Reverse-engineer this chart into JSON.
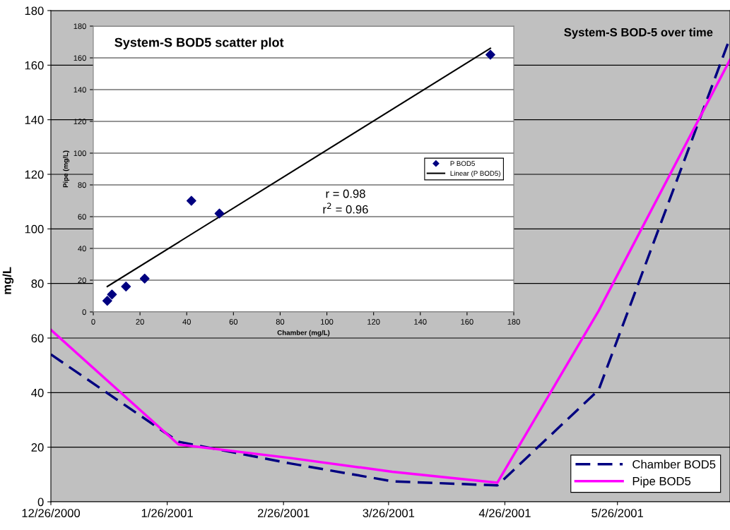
{
  "chart_data": [
    {
      "type": "line",
      "title": "System-S BOD-5 over time",
      "ylabel": "mg/L",
      "x": [
        "2000-12-26",
        "2001-01-29",
        "2001-02-28",
        "2001-03-27",
        "2001-04-24",
        "2001-05-21",
        "2001-06-25"
      ],
      "series": [
        {
          "name": "Chamber BOD5",
          "color": "#000080",
          "line_style": "dashed",
          "values": [
            54,
            22,
            14,
            7.5,
            6,
            41,
            170
          ]
        },
        {
          "name": "Pipe BOD5",
          "color": "#ff00ff",
          "line_style": "solid",
          "values": [
            63,
            21,
            16,
            11,
            7,
            70,
            162
          ]
        }
      ],
      "xlim": [
        "2000-12-26",
        "2001-06-25"
      ],
      "xticks": [
        {
          "value": "2000-12-26",
          "label": "12/26/2000"
        },
        {
          "value": "2001-01-26",
          "label": "1/26/2001"
        },
        {
          "value": "2001-02-26",
          "label": "2/26/2001"
        },
        {
          "value": "2001-03-26",
          "label": "3/26/2001"
        },
        {
          "value": "2001-04-26",
          "label": "4/26/2001"
        },
        {
          "value": "2001-05-26",
          "label": "5/26/2001"
        }
      ],
      "ylim": [
        0,
        180
      ],
      "yticks": [
        0,
        20,
        40,
        60,
        80,
        100,
        120,
        140,
        160,
        180
      ],
      "grid": "y",
      "legend": "bottom right",
      "marker": "none"
    },
    {
      "type": "scatter",
      "title": "System-S BOD5 scatter plot",
      "xlabel": "Chamber (mg/L)",
      "ylabel": "Pipe (mg/L)",
      "series": [
        {
          "name": "P BOD5",
          "type": "scatter",
          "color": "#000080",
          "marker": "diamond",
          "x": [
            6,
            8,
            14,
            22,
            42,
            54,
            170
          ],
          "values": [
            7,
            11,
            16,
            21,
            70,
            62,
            162
          ]
        },
        {
          "name": "Linear (P BOD5)",
          "type": "line",
          "color": "#000000",
          "marker": "none",
          "x": [
            6,
            170
          ],
          "values": [
            16,
            166
          ]
        }
      ],
      "annotations": [
        "r = 0.98",
        "r$^{2}$ = 0.96"
      ],
      "xlim": [
        0,
        180
      ],
      "xticks": [
        0,
        20,
        40,
        60,
        80,
        100,
        120,
        140,
        160,
        180
      ],
      "ylim": [
        0,
        180
      ],
      "yticks": [
        0,
        20,
        40,
        60,
        80,
        100,
        120,
        140,
        160,
        180
      ],
      "grid": "y",
      "legend": "center right"
    }
  ]
}
